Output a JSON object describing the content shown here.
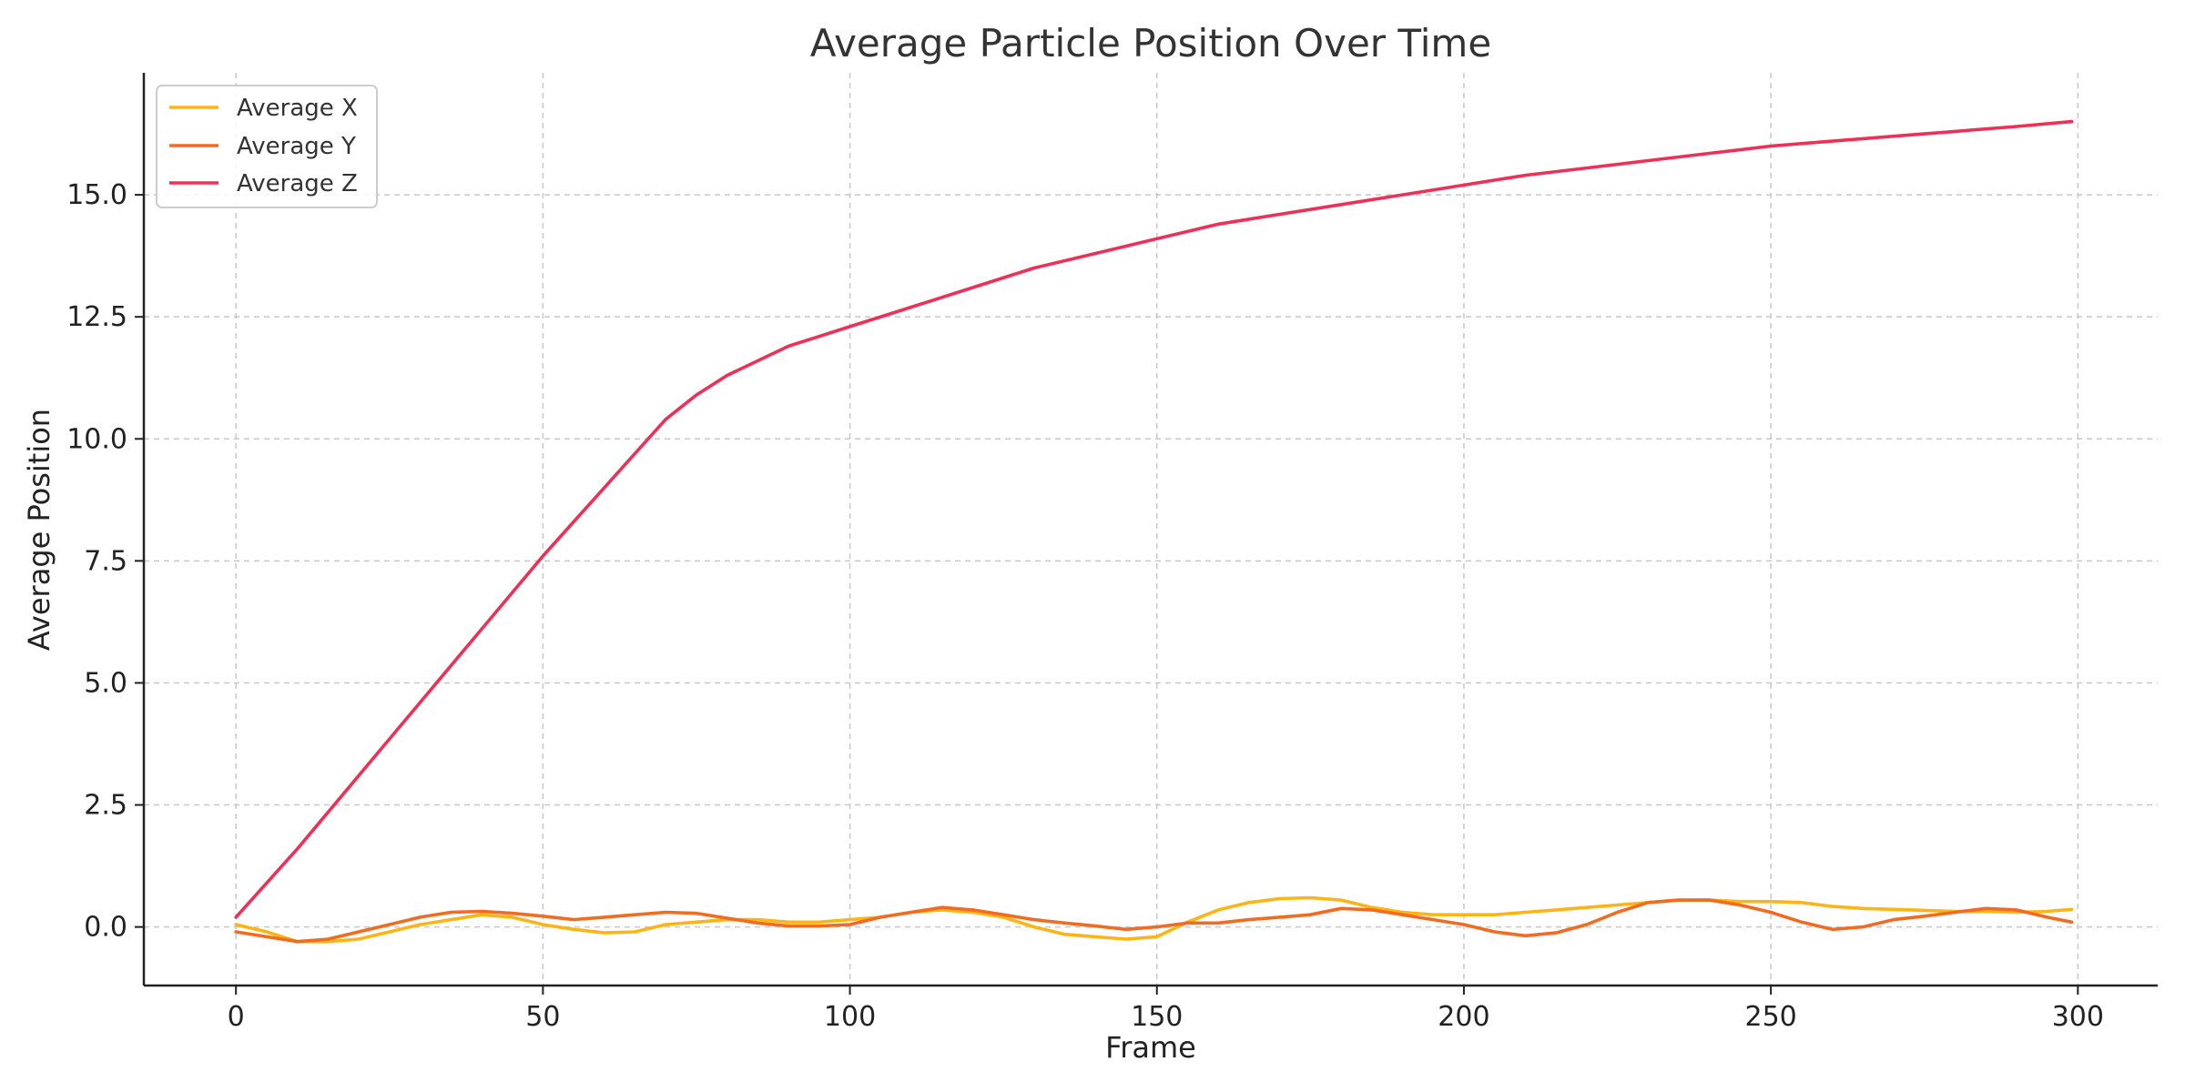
{
  "chart_data": {
    "type": "line",
    "title": "Average Particle Position Over Time",
    "xlabel": "Frame",
    "ylabel": "Average Position",
    "xlim": [
      -15,
      313
    ],
    "ylim": [
      -1.2,
      17.5
    ],
    "xticks": [
      0,
      50,
      100,
      150,
      200,
      250,
      300
    ],
    "xtick_labels": [
      "0",
      "50",
      "100",
      "150",
      "200",
      "250",
      "300"
    ],
    "yticks": [
      0,
      2.5,
      5,
      7.5,
      10,
      12.5,
      15
    ],
    "ytick_labels": [
      "0.0",
      "2.5",
      "5.0",
      "7.5",
      "10.0",
      "12.5",
      "15.0"
    ],
    "grid": true,
    "legend_position": "top-left",
    "series": [
      {
        "name": "Average X",
        "color": "#FDB515",
        "x": [
          0,
          5,
          10,
          15,
          20,
          25,
          30,
          35,
          40,
          45,
          50,
          55,
          60,
          65,
          70,
          75,
          80,
          85,
          90,
          95,
          100,
          105,
          110,
          115,
          120,
          125,
          130,
          135,
          140,
          145,
          150,
          155,
          160,
          165,
          170,
          175,
          180,
          185,
          190,
          195,
          200,
          205,
          210,
          215,
          220,
          225,
          230,
          235,
          240,
          245,
          250,
          255,
          260,
          265,
          270,
          275,
          280,
          285,
          290,
          295,
          299
        ],
        "y": [
          0.05,
          -0.1,
          -0.3,
          -0.3,
          -0.25,
          -0.1,
          0.05,
          0.15,
          0.25,
          0.2,
          0.05,
          -0.05,
          -0.12,
          -0.1,
          0.05,
          0.1,
          0.15,
          0.15,
          0.1,
          0.1,
          0.15,
          0.2,
          0.3,
          0.35,
          0.3,
          0.2,
          0.0,
          -0.15,
          -0.2,
          -0.25,
          -0.2,
          0.1,
          0.35,
          0.5,
          0.58,
          0.6,
          0.55,
          0.4,
          0.3,
          0.25,
          0.25,
          0.25,
          0.3,
          0.35,
          0.4,
          0.45,
          0.5,
          0.55,
          0.55,
          0.52,
          0.52,
          0.5,
          0.42,
          0.38,
          0.36,
          0.34,
          0.32,
          0.32,
          0.3,
          0.32,
          0.36
        ]
      },
      {
        "name": "Average Y",
        "color": "#F26B22",
        "x": [
          0,
          5,
          10,
          15,
          20,
          25,
          30,
          35,
          40,
          45,
          50,
          55,
          60,
          65,
          70,
          75,
          80,
          85,
          90,
          95,
          100,
          105,
          110,
          115,
          120,
          125,
          130,
          135,
          140,
          145,
          150,
          155,
          160,
          165,
          170,
          175,
          180,
          185,
          190,
          195,
          200,
          205,
          210,
          215,
          220,
          225,
          230,
          235,
          240,
          245,
          250,
          255,
          260,
          265,
          270,
          275,
          280,
          285,
          290,
          295,
          299
        ],
        "y": [
          -0.1,
          -0.2,
          -0.3,
          -0.25,
          -0.1,
          0.05,
          0.2,
          0.3,
          0.32,
          0.28,
          0.22,
          0.15,
          0.2,
          0.25,
          0.3,
          0.28,
          0.18,
          0.08,
          0.02,
          0.02,
          0.05,
          0.2,
          0.3,
          0.4,
          0.35,
          0.25,
          0.15,
          0.08,
          0.02,
          -0.05,
          0.0,
          0.08,
          0.08,
          0.15,
          0.2,
          0.25,
          0.38,
          0.35,
          0.25,
          0.15,
          0.05,
          -0.1,
          -0.18,
          -0.12,
          0.05,
          0.3,
          0.5,
          0.55,
          0.55,
          0.45,
          0.3,
          0.1,
          -0.05,
          0.0,
          0.15,
          0.22,
          0.3,
          0.38,
          0.35,
          0.2,
          0.1
        ]
      },
      {
        "name": "Average Z",
        "color": "#EE3057",
        "x": [
          0,
          10,
          20,
          30,
          40,
          50,
          60,
          70,
          75,
          80,
          90,
          100,
          110,
          120,
          130,
          140,
          150,
          160,
          170,
          180,
          190,
          200,
          210,
          220,
          230,
          240,
          250,
          260,
          270,
          280,
          290,
          299
        ],
        "y": [
          0.2,
          1.6,
          3.1,
          4.6,
          6.1,
          7.6,
          9.0,
          10.4,
          10.9,
          11.3,
          11.9,
          12.3,
          12.7,
          13.1,
          13.5,
          13.8,
          14.1,
          14.4,
          14.6,
          14.8,
          15.0,
          15.2,
          15.4,
          15.55,
          15.7,
          15.85,
          16.0,
          16.1,
          16.2,
          16.3,
          16.4,
          16.5
        ]
      }
    ]
  }
}
